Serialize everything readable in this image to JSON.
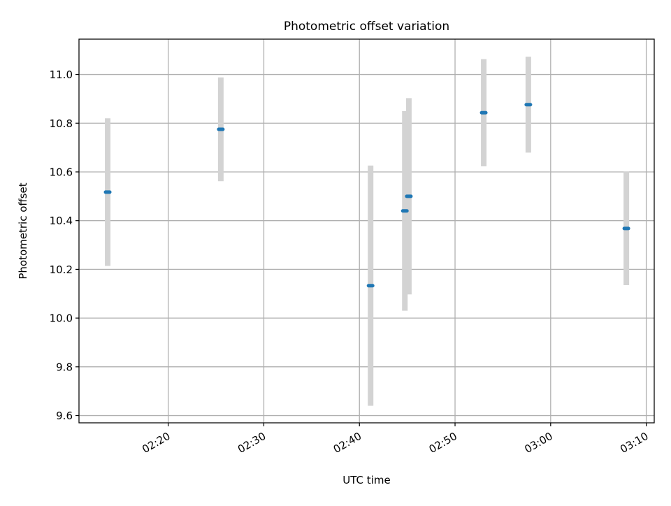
{
  "chart_data": {
    "type": "scatter",
    "title": "Photometric offset variation",
    "xlabel": "UTC time",
    "ylabel": "Photometric offset",
    "x_ticks": [
      "02:20",
      "02:30",
      "02:40",
      "02:50",
      "03:00",
      "03:10"
    ],
    "y_ticks": [
      "9.6",
      "9.8",
      "10.0",
      "10.2",
      "10.4",
      "10.6",
      "10.8",
      "11.0"
    ],
    "xlim": [
      "02:10:40",
      "03:10:50"
    ],
    "ylim": [
      9.57,
      11.145
    ],
    "grid": true,
    "points": [
      {
        "x": "02:13:40",
        "y": 10.517,
        "err": 0.303
      },
      {
        "x": "02:25:30",
        "y": 10.775,
        "err": 0.213
      },
      {
        "x": "02:41:10",
        "y": 10.133,
        "err": 0.493
      },
      {
        "x": "02:44:45",
        "y": 10.44,
        "err": 0.41
      },
      {
        "x": "02:45:10",
        "y": 10.5,
        "err": 0.403
      },
      {
        "x": "02:53:00",
        "y": 10.843,
        "err": 0.22
      },
      {
        "x": "02:57:40",
        "y": 10.876,
        "err": 0.197
      },
      {
        "x": "03:07:55",
        "y": 10.368,
        "err": 0.233
      }
    ],
    "colors": {
      "marker": "#1f77b4",
      "errorbar": "#d3d3d3",
      "grid": "#b0b0b0"
    }
  }
}
